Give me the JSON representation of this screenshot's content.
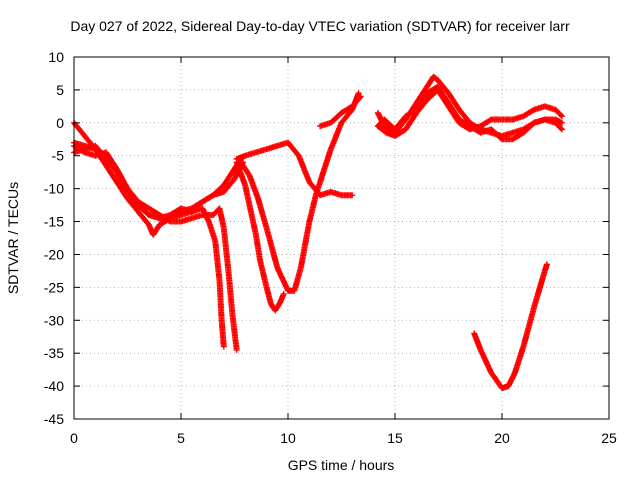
{
  "chart_data": {
    "type": "scatter",
    "title": "Day 027 of 2022, Sidereal Day-to-day VTEC variation (SDTVAR) for receiver larr",
    "xlabel": "GPS time / hours",
    "ylabel": "SDTVAR / TECUs",
    "xlim": [
      0,
      25
    ],
    "ylim": [
      -45,
      10
    ],
    "x_ticks": [
      "0",
      "5",
      "10",
      "15",
      "20",
      "25"
    ],
    "y_ticks": [
      "10",
      "5",
      "0",
      "-5",
      "-10",
      "-15",
      "-20",
      "-25",
      "-30",
      "-35",
      "-40",
      "-45"
    ],
    "grid": true,
    "marker": "+",
    "series_color": "#ff0000",
    "series": [
      {
        "x": [
          0.0,
          0.5,
          1.0,
          1.5,
          2.0,
          2.5,
          3.0,
          3.5,
          3.7,
          4.0,
          4.5,
          5.0,
          5.5,
          6.0,
          6.5,
          7.0,
          7.3,
          7.6,
          7.8
        ],
        "y": [
          0.0,
          -2.0,
          -4.0,
          -6.5,
          -9.0,
          -11.5,
          -13.5,
          -15.5,
          -17.0,
          -15.5,
          -14.5,
          -14.0,
          -13.5,
          -12.0,
          -11.0,
          -9.5,
          -8.0,
          -6.5,
          -5.5
        ]
      },
      {
        "x": [
          0.0,
          0.5,
          1.0,
          1.5,
          2.0,
          2.5,
          3.0,
          3.5,
          4.0,
          4.5,
          5.0,
          5.5,
          6.0,
          6.5,
          7.0,
          7.5,
          7.9
        ],
        "y": [
          -3.0,
          -3.5,
          -4.0,
          -5.0,
          -7.5,
          -10.0,
          -12.5,
          -14.0,
          -14.5,
          -14.5,
          -13.5,
          -13.0,
          -12.0,
          -11.0,
          -10.5,
          -8.5,
          -6.0
        ]
      },
      {
        "x": [
          0.0,
          0.5,
          1.0,
          1.5,
          2.0,
          2.5,
          3.0,
          3.5,
          4.0,
          4.5,
          5.0,
          5.5,
          6.0,
          6.3,
          6.6,
          6.8,
          6.9,
          7.0
        ],
        "y": [
          -4.5,
          -4.0,
          -3.5,
          -5.5,
          -7.5,
          -10.5,
          -12.5,
          -14.0,
          -14.5,
          -14.0,
          -13.0,
          -13.5,
          -13.0,
          -15.0,
          -18.0,
          -24.0,
          -30.0,
          -34.0
        ]
      },
      {
        "x": [
          0.0,
          0.5,
          1.0,
          1.5,
          2.0,
          2.5,
          3.0,
          3.5,
          4.0,
          4.5,
          5.0,
          5.5,
          6.0,
          6.5,
          6.8,
          7.0,
          7.2,
          7.4,
          7.6
        ],
        "y": [
          -3.5,
          -4.5,
          -5.0,
          -4.5,
          -7.0,
          -10.0,
          -12.0,
          -13.0,
          -14.0,
          -15.0,
          -15.0,
          -14.5,
          -14.0,
          -14.0,
          -13.0,
          -16.0,
          -22.0,
          -29.0,
          -34.5
        ]
      },
      {
        "x": [
          7.6,
          8.0,
          8.5,
          9.0,
          9.5,
          10.0,
          10.5,
          11.0,
          11.5,
          12.0,
          12.5,
          13.0
        ],
        "y": [
          -5.5,
          -5.0,
          -4.5,
          -4.0,
          -3.5,
          -3.0,
          -5.0,
          -9.0,
          -11.0,
          -10.5,
          -11.0,
          -11.0
        ]
      },
      {
        "x": [
          7.6,
          8.0,
          8.5,
          8.7,
          9.0,
          9.2,
          9.4,
          9.6,
          9.8
        ],
        "y": [
          -6.0,
          -9.5,
          -17.0,
          -21.0,
          -25.0,
          -27.5,
          -28.5,
          -27.5,
          -26.0
        ]
      },
      {
        "x": [
          7.8,
          8.2,
          8.6,
          9.0,
          9.5,
          10.0,
          10.3,
          10.6,
          11.0,
          11.3,
          11.6,
          12.0,
          12.5,
          13.0,
          13.3
        ],
        "y": [
          -6.0,
          -8.0,
          -11.5,
          -16.0,
          -22.0,
          -25.5,
          -25.5,
          -22.0,
          -15.0,
          -11.0,
          -8.0,
          -4.0,
          0.0,
          2.0,
          4.5
        ]
      },
      {
        "x": [
          11.5,
          12.0,
          12.5,
          13.0,
          13.4
        ],
        "y": [
          -0.5,
          0.0,
          1.5,
          2.5,
          4.0
        ]
      },
      {
        "x": [
          14.2,
          14.5,
          15.0,
          15.5,
          16.0,
          16.5,
          16.8,
          17.0,
          17.5,
          18.0,
          18.5,
          19.0,
          19.5,
          20.0,
          20.5,
          21.0,
          21.5,
          22.0,
          22.5,
          22.8
        ],
        "y": [
          1.5,
          -0.5,
          -1.5,
          0.5,
          3.0,
          5.5,
          7.0,
          6.5,
          4.5,
          2.0,
          0.0,
          -1.0,
          -1.5,
          -2.0,
          -1.5,
          -1.0,
          0.0,
          0.5,
          0.5,
          0.0
        ]
      },
      {
        "x": [
          14.2,
          14.5,
          15.0,
          15.5,
          16.0,
          16.5,
          17.0,
          17.5,
          18.0,
          18.5,
          19.0,
          19.5,
          20.0,
          20.5,
          21.0,
          21.5,
          22.0,
          22.5,
          22.8
        ],
        "y": [
          -0.5,
          0.5,
          -1.0,
          1.0,
          2.0,
          4.5,
          5.5,
          3.0,
          0.5,
          -0.5,
          -1.5,
          -1.0,
          -2.5,
          -2.5,
          -1.5,
          0.0,
          0.5,
          0.0,
          -1.0
        ]
      },
      {
        "x": [
          14.2,
          14.6,
          15.0,
          15.5,
          16.0,
          16.5,
          17.0,
          17.5,
          18.0,
          18.5,
          19.0,
          19.5,
          20.0,
          20.5,
          21.0,
          21.5,
          22.0,
          22.5,
          22.8
        ],
        "y": [
          -0.5,
          -1.5,
          -2.0,
          -1.0,
          1.5,
          3.5,
          5.0,
          2.5,
          0.0,
          -1.0,
          -0.5,
          0.5,
          0.5,
          0.5,
          1.0,
          2.0,
          2.5,
          2.0,
          1.0
        ]
      },
      {
        "x": [
          18.7,
          19.0,
          19.5,
          20.0,
          20.3,
          20.6,
          21.0,
          21.5,
          22.0,
          22.1
        ],
        "y": [
          -32.0,
          -34.5,
          -38.0,
          -40.3,
          -40.0,
          -38.0,
          -34.0,
          -28.0,
          -22.5,
          -21.5
        ]
      }
    ]
  }
}
